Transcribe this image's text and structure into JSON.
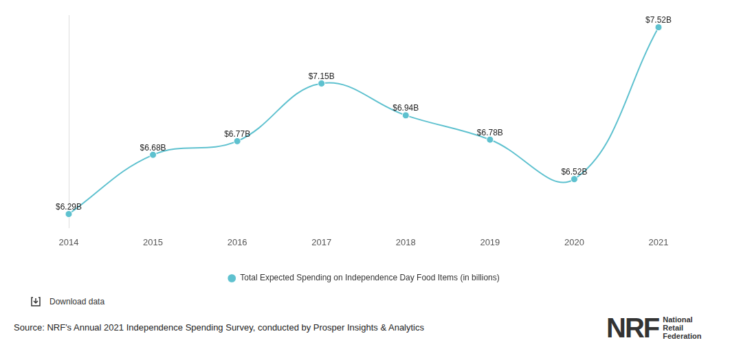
{
  "chart_data": {
    "type": "line",
    "categories": [
      "2014",
      "2015",
      "2016",
      "2017",
      "2018",
      "2019",
      "2020",
      "2021"
    ],
    "series": [
      {
        "name": "Total Expected Spending on Independence Day Food Items (in billions)",
        "color": "#5ec1cf",
        "marker": "circle",
        "values": [
          6.29,
          6.68,
          6.77,
          7.15,
          6.94,
          6.78,
          6.52,
          7.52
        ],
        "value_labels": [
          "$6.29B",
          "$6.68B",
          "$6.77B",
          "$7.15B",
          "$6.94B",
          "$6.78B",
          "$6.52B",
          "$7.52B"
        ]
      }
    ],
    "ylim": [
      6.2,
      7.6
    ],
    "grid": false,
    "legend": "bottom",
    "data_labels": true,
    "tick_labels": "x"
  },
  "download": "Download data",
  "source": "Source: NRF's Annual 2021 Independence Spending Survey, conducted by Prosper Insights & Analytics",
  "logo": {
    "mark": "NRF",
    "name": [
      "National",
      "Retail",
      "Federation"
    ]
  }
}
